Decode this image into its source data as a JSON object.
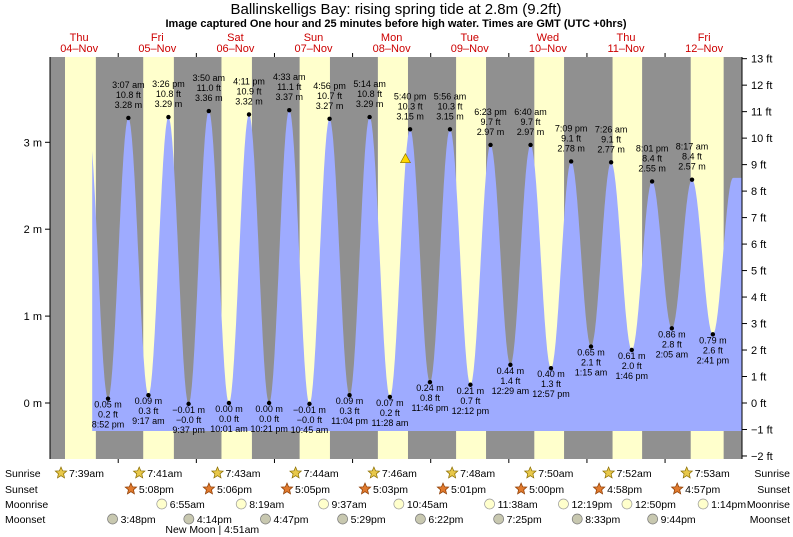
{
  "colors": {
    "night": "#909090",
    "day": "#ffffcc",
    "tide": "#9eabff",
    "day_label": "#cc0000",
    "marker": "#ffd700"
  },
  "header": {
    "title": "Ballinskelligs Bay: rising  spring tide at 2.8m (9.2ft)",
    "subtitle": "Image captured One hour and 25 minutes before high water. Times are GMT (UTC +0hrs)"
  },
  "days": [
    {
      "dow": "Thu",
      "date": "04–Nov"
    },
    {
      "dow": "Fri",
      "date": "05–Nov"
    },
    {
      "dow": "Sat",
      "date": "06–Nov"
    },
    {
      "dow": "Sun",
      "date": "07–Nov"
    },
    {
      "dow": "Mon",
      "date": "08–Nov"
    },
    {
      "dow": "Tue",
      "date": "09–Nov"
    },
    {
      "dow": "Wed",
      "date": "10–Nov"
    },
    {
      "dow": "Thu",
      "date": "11–Nov"
    },
    {
      "dow": "Fri",
      "date": "12–Nov"
    }
  ],
  "chart_data": {
    "type": "area",
    "title": "Ballinskelligs Bay: rising  spring tide at 2.8m (9.2ft)",
    "subtitle": "Image captured One hour and 25 minutes before high water. Times are GMT (UTC +0hrs)",
    "x_unit": "hours from 04-Nov 00:00 GMT",
    "xlim": [
      0,
      212
    ],
    "ylim_m": [
      -0.56,
      4.0
    ],
    "ylim_ft": [
      -2,
      13
    ],
    "y_ticks_m": [
      0,
      1,
      2,
      3
    ],
    "y_tick_labels_m": [
      "0 m",
      "1 m",
      "2 m",
      "3 m"
    ],
    "y_ticks_ft": [
      -2,
      -1,
      0,
      1,
      2,
      3,
      4,
      5,
      6,
      7,
      8,
      9,
      10,
      11,
      12,
      13
    ],
    "y_tick_labels_ft": [
      "−2 ft",
      "−1 ft",
      "0 ft",
      "1 ft",
      "2 ft",
      "3 ft",
      "4 ft",
      "5 ft",
      "6 ft",
      "7 ft",
      "8 ft",
      "9 ft",
      "10 ft",
      "11 ft",
      "12 ft",
      "13 ft"
    ],
    "daylight": [
      {
        "rise": 7.65,
        "set": 17.13
      },
      {
        "rise": 31.68,
        "set": 41.1
      },
      {
        "rise": 55.72,
        "set": 65.08
      },
      {
        "rise": 79.73,
        "set": 89.05
      },
      {
        "rise": 103.77,
        "set": 113.02
      },
      {
        "rise": 127.8,
        "set": 137.0
      },
      {
        "rise": 151.83,
        "set": 160.97
      },
      {
        "rise": 175.87,
        "set": 184.95
      },
      {
        "rise": 199.88,
        "set": 210.0
      }
    ],
    "tides": [
      {
        "t": 20.87,
        "m": 0.05,
        "lines": [
          "0.05 m",
          "0.2 ft",
          "8:52 pm"
        ],
        "kind": "low"
      },
      {
        "t": 27.12,
        "m": 3.28,
        "lines": [
          "3:07 am",
          "10.8 ft",
          "3.28 m"
        ],
        "kind": "high"
      },
      {
        "t": 33.28,
        "m": 0.09,
        "lines": [
          "0.09 m",
          "0.3 ft",
          "9:17 am"
        ],
        "kind": "low"
      },
      {
        "t": 39.43,
        "m": 3.29,
        "lines": [
          "3:26 pm",
          "10.8 ft",
          "3.29 m"
        ],
        "kind": "high"
      },
      {
        "t": 45.62,
        "m": -0.01,
        "lines": [
          "−0.01 m",
          "−0.0 ft",
          "9:37 pm"
        ],
        "kind": "low"
      },
      {
        "t": 51.83,
        "m": 3.36,
        "lines": [
          "3:50 am",
          "11.0 ft",
          "3.36 m"
        ],
        "kind": "high"
      },
      {
        "t": 58.02,
        "m": 0.0,
        "lines": [
          "0.00 m",
          "0.0 ft",
          "10:01 am"
        ],
        "kind": "low"
      },
      {
        "t": 64.18,
        "m": 3.32,
        "lines": [
          "4:11 pm",
          "10.9 ft",
          "3.32 m"
        ],
        "kind": "high"
      },
      {
        "t": 70.35,
        "m": 0.0,
        "lines": [
          "0.00 m",
          "0.0 ft",
          "10:21 pm"
        ],
        "kind": "low"
      },
      {
        "t": 76.55,
        "m": 3.37,
        "lines": [
          "4:33 am",
          "11.1 ft",
          "3.37 m"
        ],
        "kind": "high"
      },
      {
        "t": 82.75,
        "m": -0.01,
        "lines": [
          "−0.01 m",
          "−0.0 ft",
          "10:45 am"
        ],
        "kind": "low"
      },
      {
        "t": 88.93,
        "m": 3.27,
        "lines": [
          "4:56 pm",
          "10.7 ft",
          "3.27 m"
        ],
        "kind": "high"
      },
      {
        "t": 95.07,
        "m": 0.09,
        "lines": [
          "0.09 m",
          "0.3 ft",
          "11:04 pm"
        ],
        "kind": "low"
      },
      {
        "t": 101.23,
        "m": 3.29,
        "lines": [
          "5:14 am",
          "10.8 ft",
          "3.29 m"
        ],
        "kind": "high"
      },
      {
        "t": 107.47,
        "m": 0.07,
        "lines": [
          "0.07 m",
          "0.2 ft",
          "11:28 am"
        ],
        "kind": "low"
      },
      {
        "t": 113.67,
        "m": 3.15,
        "lines": [
          "5:40 pm",
          "10.3 ft",
          "3.15 m"
        ],
        "kind": "high"
      },
      {
        "t": 119.77,
        "m": 0.24,
        "lines": [
          "0.24 m",
          "0.8 ft",
          "11:46 pm"
        ],
        "kind": "low"
      },
      {
        "t": 125.93,
        "m": 3.15,
        "lines": [
          "5:56 am",
          "10.3 ft",
          "3.15 m"
        ],
        "kind": "high"
      },
      {
        "t": 132.2,
        "m": 0.21,
        "lines": [
          "0.21 m",
          "0.7 ft",
          "12:12 pm"
        ],
        "kind": "low"
      },
      {
        "t": 138.38,
        "m": 2.97,
        "lines": [
          "6:23 pm",
          "9.7 ft",
          "2.97 m"
        ],
        "kind": "high"
      },
      {
        "t": 144.48,
        "m": 0.44,
        "lines": [
          "0.44 m",
          "1.4 ft",
          "12:29 am"
        ],
        "kind": "low"
      },
      {
        "t": 150.67,
        "m": 2.97,
        "lines": [
          "6:40 am",
          "9.7 ft",
          "2.97 m"
        ],
        "kind": "high"
      },
      {
        "t": 156.95,
        "m": 0.4,
        "lines": [
          "0.40 m",
          "1.3 ft",
          "12:57 pm"
        ],
        "kind": "low"
      },
      {
        "t": 163.15,
        "m": 2.78,
        "lines": [
          "7:09 pm",
          "9.1 ft",
          "2.78 m"
        ],
        "kind": "high"
      },
      {
        "t": 169.25,
        "m": 0.65,
        "lines": [
          "0.65 m",
          "2.1 ft",
          "1:15 am"
        ],
        "kind": "low"
      },
      {
        "t": 175.43,
        "m": 2.77,
        "lines": [
          "7:26 am",
          "9.1 ft",
          "2.77 m"
        ],
        "kind": "high"
      },
      {
        "t": 181.77,
        "m": 0.61,
        "lines": [
          "0.61 m",
          "2.0 ft",
          "1:46 pm"
        ],
        "kind": "low"
      },
      {
        "t": 188.02,
        "m": 2.55,
        "lines": [
          "8:01 pm",
          "8.4 ft",
          "2.55 m"
        ],
        "kind": "high"
      },
      {
        "t": 194.08,
        "m": 0.86,
        "lines": [
          "0.86 m",
          "2.8 ft",
          "2:05 am"
        ],
        "kind": "low"
      },
      {
        "t": 200.28,
        "m": 2.57,
        "lines": [
          "8:17 am",
          "8.4 ft",
          "2.57 m"
        ],
        "kind": "high"
      },
      {
        "t": 206.68,
        "m": 0.79,
        "lines": [
          "0.79 m",
          "2.6 ft",
          "2:41 pm"
        ],
        "kind": "low"
      }
    ],
    "current": {
      "t": 112.25,
      "m": 2.8
    }
  },
  "footer": {
    "row_labels": [
      "Sunrise",
      "Sunset",
      "Moonrise",
      "Moonset"
    ],
    "sunrise": [
      {
        "t": 7.65,
        "text": "7:39am"
      },
      {
        "t": 31.68,
        "text": "7:41am"
      },
      {
        "t": 55.72,
        "text": "7:43am"
      },
      {
        "t": 79.73,
        "text": "7:44am"
      },
      {
        "t": 103.77,
        "text": "7:46am"
      },
      {
        "t": 127.8,
        "text": "7:48am"
      },
      {
        "t": 151.83,
        "text": "7:50am"
      },
      {
        "t": 175.87,
        "text": "7:52am"
      },
      {
        "t": 199.88,
        "text": "7:53am"
      }
    ],
    "sunset": [
      {
        "t": 29.13,
        "text": "5:08pm"
      },
      {
        "t": 53.1,
        "text": "5:06pm"
      },
      {
        "t": 77.08,
        "text": "5:05pm"
      },
      {
        "t": 101.05,
        "text": "5:03pm"
      },
      {
        "t": 125.02,
        "text": "5:01pm"
      },
      {
        "t": 149.0,
        "text": "5:00pm"
      },
      {
        "t": 172.97,
        "text": "4:58pm"
      },
      {
        "t": 196.95,
        "text": "4:57pm"
      }
    ],
    "moonrise": [
      {
        "t": 38.92,
        "text": "6:55am"
      },
      {
        "t": 63.32,
        "text": "8:19am"
      },
      {
        "t": 88.62,
        "text": "9:37am"
      },
      {
        "t": 111.75,
        "text": "10:45am"
      },
      {
        "t": 139.63,
        "text": "11:38am"
      },
      {
        "t": 162.32,
        "text": "12:19pm"
      },
      {
        "t": 181.83,
        "text": "12:50pm"
      },
      {
        "t": 205.23,
        "text": "1:14pm"
      }
    ],
    "moonset": [
      {
        "t": 23.8,
        "text": "3:48pm"
      },
      {
        "t": 47.23,
        "text": "4:14pm"
      },
      {
        "t": 70.78,
        "text": "4:47pm"
      },
      {
        "t": 94.48,
        "text": "5:29pm"
      },
      {
        "t": 118.37,
        "text": "6:22pm"
      },
      {
        "t": 142.42,
        "text": "7:25pm"
      },
      {
        "t": 166.55,
        "text": "8:33pm"
      },
      {
        "t": 189.73,
        "text": "9:44pm"
      }
    ],
    "moon_phase": "New Moon | 4:51am"
  }
}
